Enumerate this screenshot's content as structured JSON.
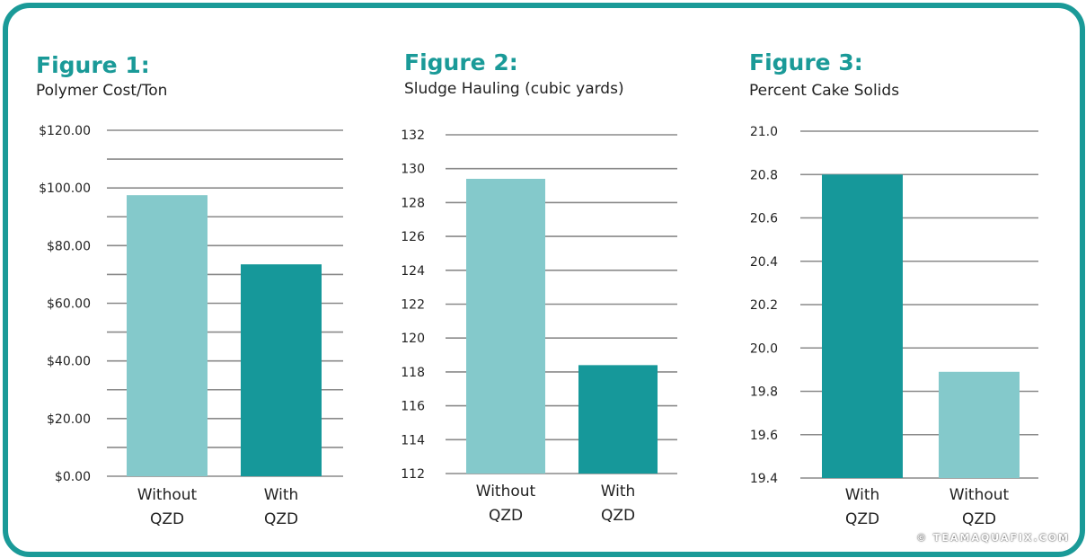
{
  "colors": {
    "accent": "#1a9a98",
    "light": "#84c9cb",
    "dark": "#16989a",
    "grid": "#8a8a8a"
  },
  "copyright": "© TEAMAQUAFIX.COM",
  "chart_data": [
    {
      "type": "bar",
      "title": "Figure 1:",
      "subtitle": "Polymer Cost/Ton",
      "categories": [
        [
          "Without",
          "QZD"
        ],
        [
          "With",
          "QZD"
        ]
      ],
      "values": [
        97.5,
        73.5
      ],
      "bar_colors": [
        "#84c9cb",
        "#16989a"
      ],
      "ylim": [
        0,
        120
      ],
      "yticks": [
        0,
        20,
        40,
        60,
        80,
        100,
        120
      ],
      "ytick_labels": [
        "$0.00",
        "$20.00",
        "$40.00",
        "$60.00",
        "$80.00",
        "$100.00",
        "$120.00"
      ],
      "grid_step": 10
    },
    {
      "type": "bar",
      "title": "Figure 2:",
      "subtitle": "Sludge Hauling (cubic yards)",
      "categories": [
        [
          "Without",
          "QZD"
        ],
        [
          "With",
          "QZD"
        ]
      ],
      "values": [
        129.4,
        118.4
      ],
      "bar_colors": [
        "#84c9cb",
        "#16989a"
      ],
      "ylim": [
        112,
        132
      ],
      "yticks": [
        112,
        114,
        116,
        118,
        120,
        122,
        124,
        126,
        128,
        130,
        132
      ],
      "ytick_labels": [
        "112",
        "114",
        "116",
        "118",
        "120",
        "122",
        "124",
        "126",
        "128",
        "130",
        "132"
      ],
      "grid_step": 2
    },
    {
      "type": "bar",
      "title": "Figure 3:",
      "subtitle": "Percent Cake Solids",
      "categories": [
        [
          "With",
          "QZD"
        ],
        [
          "Without",
          "QZD"
        ]
      ],
      "values": [
        20.8,
        19.89
      ],
      "bar_colors": [
        "#16989a",
        "#84c9cb"
      ],
      "ylim": [
        19.4,
        21.0
      ],
      "yticks": [
        19.4,
        19.6,
        19.8,
        20.0,
        20.2,
        20.4,
        20.6,
        20.8,
        21.0
      ],
      "ytick_labels": [
        "19.4",
        "19.6",
        "19.8",
        "20.0",
        "20.2",
        "20.4",
        "20.6",
        "20.8",
        "21.0"
      ],
      "grid_step": 0.2
    }
  ]
}
